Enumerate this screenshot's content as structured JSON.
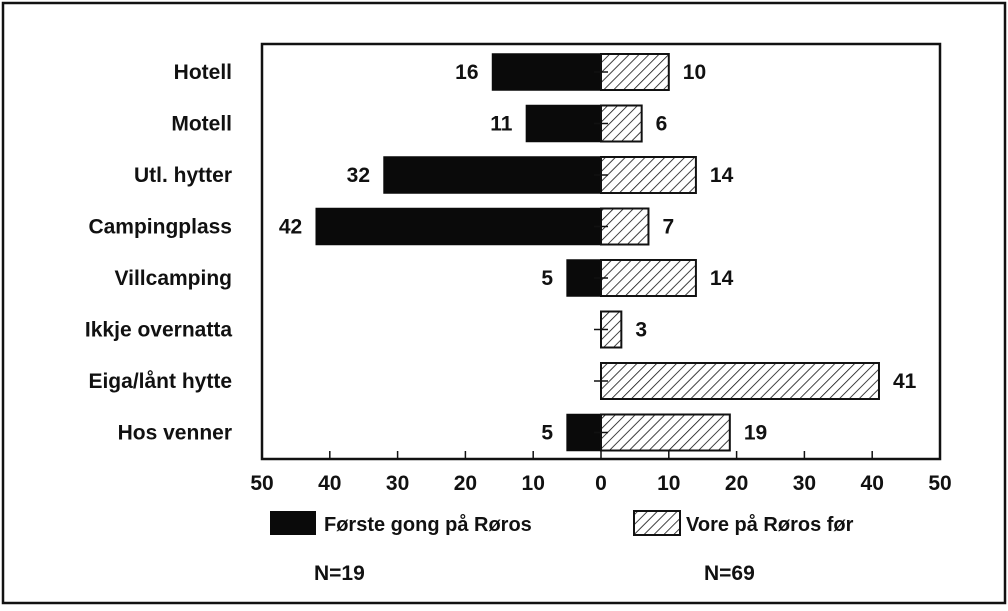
{
  "chart_data": {
    "type": "bar",
    "orientation": "horizontal-diverging",
    "categories": [
      "Hotell",
      "Motell",
      "Utl. hytter",
      "Campingplass",
      "Villcamping",
      "Ikkje overnatta",
      "Eiga/lånt hytte",
      "Hos venner"
    ],
    "series": [
      {
        "name": "Første gong på Røros",
        "side": "left",
        "fill": "solid",
        "values": [
          16,
          11,
          32,
          42,
          5,
          0,
          0,
          5
        ],
        "value_labels": [
          "16",
          "11",
          "32",
          "42",
          "5",
          "",
          "",
          "5"
        ]
      },
      {
        "name": "Vore på Røros før",
        "side": "right",
        "fill": "hatched",
        "values": [
          10,
          6,
          14,
          7,
          14,
          3,
          41,
          19
        ],
        "value_labels": [
          "10",
          "6",
          "14",
          "7",
          "14",
          "3",
          "41",
          "19"
        ]
      }
    ],
    "xlim": [
      -50,
      50
    ],
    "x_ticks": [
      -50,
      -40,
      -30,
      -20,
      -10,
      0,
      10,
      20,
      30,
      40,
      50
    ],
    "x_tick_labels": [
      "50",
      "40",
      "30",
      "20",
      "10",
      "0",
      "10",
      "20",
      "30",
      "40",
      "50"
    ],
    "grid": false,
    "legend_position": "bottom",
    "annotations": [
      "N=19",
      "N=69"
    ],
    "colors": {
      "solid": "#0a0a0a",
      "hatch": "#111111",
      "frame": "#111111",
      "background": "#ffffff"
    }
  }
}
